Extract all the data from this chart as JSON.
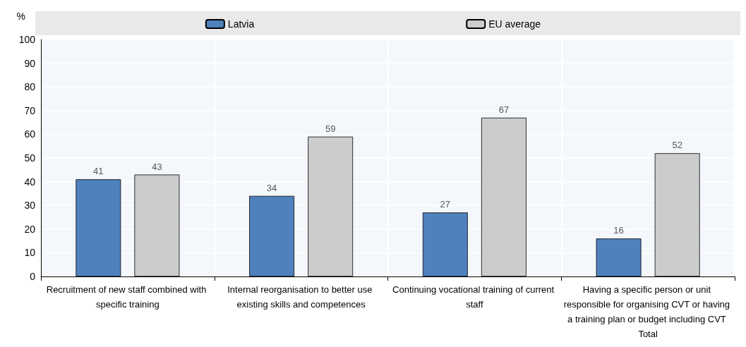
{
  "chart_data": {
    "type": "bar",
    "ylabel": "%",
    "categories": [
      "Recruitment of new staff combined with specific training",
      "Internal reorganisation to better use existing skills and competences",
      "Continuing vocational training of current staff",
      "Having a specific person or unit responsible for organising CVT or having a training plan or budget including CVT Total"
    ],
    "series": [
      {
        "name": "Latvia",
        "color": "#4f81bd",
        "values": [
          41,
          34,
          27,
          16
        ]
      },
      {
        "name": "EU average",
        "color": "#cccccc",
        "values": [
          43,
          59,
          67,
          52
        ]
      }
    ],
    "ylim": [
      0,
      100
    ],
    "yticks": [
      0,
      10,
      20,
      30,
      40,
      50,
      60,
      70,
      80,
      90,
      100
    ],
    "grid": true,
    "legend": "top",
    "data_labels": true
  }
}
